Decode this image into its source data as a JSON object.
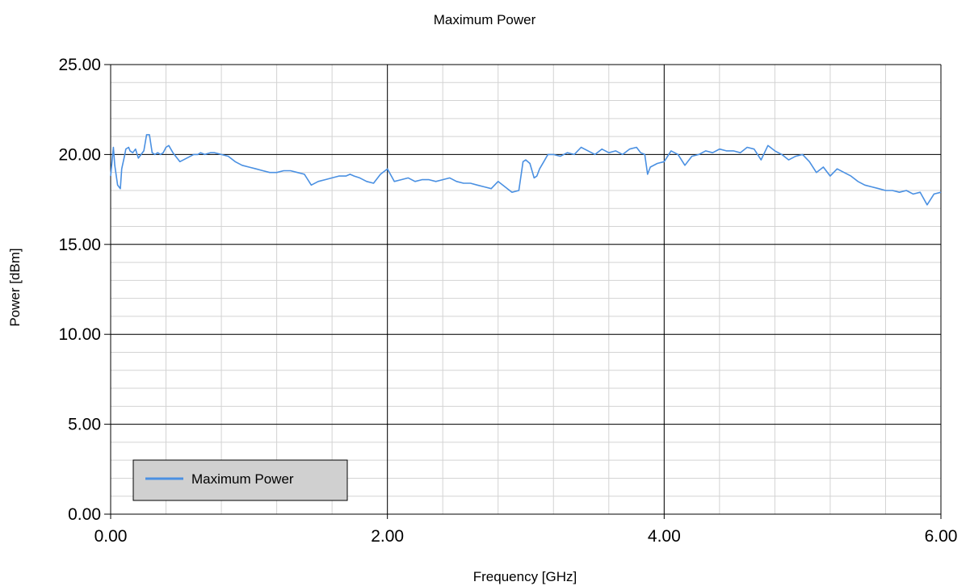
{
  "chart_data": {
    "type": "line",
    "title": "Maximum Power",
    "xlabel": "Frequency [GHz]",
    "ylabel": "Power [dBm]",
    "xlim": [
      0,
      6
    ],
    "ylim": [
      0,
      25
    ],
    "x_major_ticks": [
      0,
      2,
      4,
      6
    ],
    "x_tick_labels": [
      "0.00",
      "2.00",
      "4.00",
      "6.00"
    ],
    "y_major_ticks": [
      0,
      5,
      10,
      15,
      20,
      25
    ],
    "y_tick_labels": [
      "0.00",
      "5.00",
      "10.00",
      "15.00",
      "20.00",
      "25.00"
    ],
    "x_minor_step": 0.4,
    "y_minor_step": 1,
    "grid": true,
    "legend": {
      "position": "bottom-left",
      "entries": [
        "Maximum Power"
      ]
    },
    "series": [
      {
        "name": "Maximum Power",
        "color": "#4a90e2",
        "x": [
          0.0,
          0.02,
          0.03,
          0.05,
          0.07,
          0.08,
          0.1,
          0.11,
          0.13,
          0.14,
          0.16,
          0.18,
          0.2,
          0.22,
          0.24,
          0.26,
          0.28,
          0.3,
          0.32,
          0.34,
          0.36,
          0.38,
          0.4,
          0.42,
          0.45,
          0.5,
          0.55,
          0.6,
          0.63,
          0.65,
          0.68,
          0.72,
          0.75,
          0.8,
          0.85,
          0.9,
          0.95,
          1.0,
          1.05,
          1.1,
          1.15,
          1.2,
          1.25,
          1.3,
          1.35,
          1.4,
          1.45,
          1.5,
          1.55,
          1.6,
          1.65,
          1.7,
          1.73,
          1.76,
          1.8,
          1.85,
          1.9,
          1.95,
          2.0,
          2.05,
          2.1,
          2.15,
          2.2,
          2.25,
          2.3,
          2.35,
          2.4,
          2.45,
          2.5,
          2.55,
          2.6,
          2.65,
          2.7,
          2.75,
          2.8,
          2.85,
          2.9,
          2.95,
          2.98,
          3.0,
          3.03,
          3.06,
          3.08,
          3.1,
          3.13,
          3.16,
          3.2,
          3.25,
          3.3,
          3.35,
          3.4,
          3.45,
          3.5,
          3.55,
          3.6,
          3.65,
          3.7,
          3.75,
          3.8,
          3.83,
          3.86,
          3.88,
          3.9,
          3.95,
          4.0,
          4.05,
          4.1,
          4.15,
          4.2,
          4.25,
          4.3,
          4.35,
          4.4,
          4.45,
          4.5,
          4.55,
          4.6,
          4.65,
          4.7,
          4.75,
          4.8,
          4.85,
          4.9,
          4.95,
          5.0,
          5.05,
          5.1,
          5.15,
          5.2,
          5.25,
          5.3,
          5.35,
          5.4,
          5.45,
          5.5,
          5.55,
          5.6,
          5.65,
          5.7,
          5.75,
          5.8,
          5.85,
          5.9,
          5.95,
          6.0
        ],
        "y": [
          18.8,
          20.4,
          19.4,
          18.3,
          18.1,
          19.2,
          19.9,
          20.3,
          20.4,
          20.2,
          20.1,
          20.3,
          19.8,
          20.0,
          20.2,
          21.1,
          21.1,
          20.1,
          20.0,
          20.1,
          20.0,
          20.1,
          20.4,
          20.5,
          20.1,
          19.6,
          19.8,
          20.0,
          20.0,
          20.1,
          20.0,
          20.1,
          20.1,
          20.0,
          19.9,
          19.6,
          19.4,
          19.3,
          19.2,
          19.1,
          19.0,
          19.0,
          19.1,
          19.1,
          19.0,
          18.9,
          18.3,
          18.5,
          18.6,
          18.7,
          18.8,
          18.8,
          18.9,
          18.8,
          18.7,
          18.5,
          18.4,
          18.9,
          19.2,
          18.5,
          18.6,
          18.7,
          18.5,
          18.6,
          18.6,
          18.5,
          18.6,
          18.7,
          18.5,
          18.4,
          18.4,
          18.3,
          18.2,
          18.1,
          18.5,
          18.2,
          17.9,
          18.0,
          19.6,
          19.7,
          19.5,
          18.7,
          18.8,
          19.2,
          19.6,
          20.0,
          20.0,
          19.9,
          20.1,
          20.0,
          20.4,
          20.2,
          20.0,
          20.3,
          20.1,
          20.2,
          20.0,
          20.3,
          20.4,
          20.1,
          20.0,
          18.9,
          19.3,
          19.5,
          19.6,
          20.2,
          20.0,
          19.4,
          19.9,
          20.0,
          20.2,
          20.1,
          20.3,
          20.2,
          20.2,
          20.1,
          20.4,
          20.3,
          19.7,
          20.5,
          20.2,
          20.0,
          19.7,
          19.9,
          20.0,
          19.6,
          19.0,
          19.3,
          18.8,
          19.2,
          19.0,
          18.8,
          18.5,
          18.3,
          18.2,
          18.1,
          18.0,
          18.0,
          17.9,
          18.0,
          17.8,
          17.9,
          17.2,
          17.8,
          17.9
        ]
      }
    ]
  }
}
